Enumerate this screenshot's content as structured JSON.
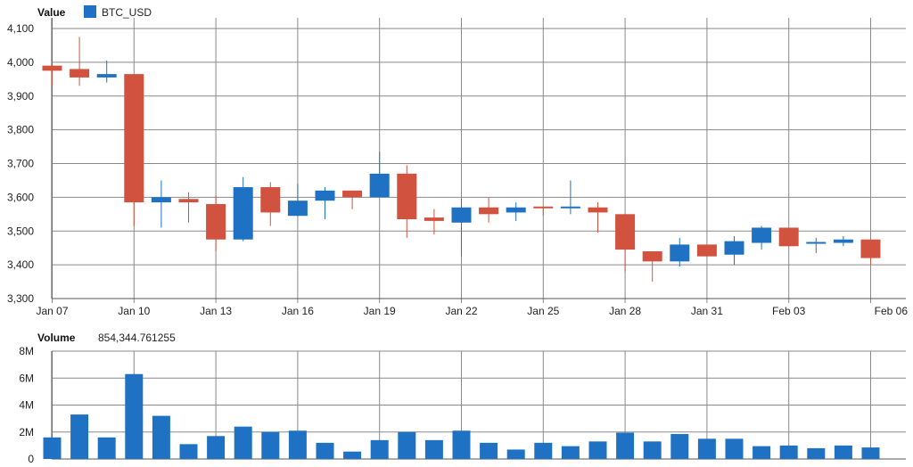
{
  "chart_data": [
    {
      "type": "candlestick",
      "panel_label": "Value",
      "series_name": "BTC_USD",
      "up_color": "#1f72c3",
      "down_color": "#d25240",
      "ylim": [
        3300,
        4100
      ],
      "y_ticks": [
        "3,300",
        "3,400",
        "3,500",
        "3,600",
        "3,700",
        "3,800",
        "3,900",
        "4,000",
        "4,100"
      ],
      "x_tick_labels": [
        "Jan 07",
        "Jan 10",
        "Jan 13",
        "Jan 16",
        "Jan 19",
        "Jan 22",
        "Jan 25",
        "Jan 28",
        "Jan 31",
        "Feb 03",
        "Feb 06"
      ],
      "dates": [
        "Jan 07",
        "Jan 08",
        "Jan 09",
        "Jan 10",
        "Jan 11",
        "Jan 12",
        "Jan 13",
        "Jan 14",
        "Jan 15",
        "Jan 16",
        "Jan 17",
        "Jan 18",
        "Jan 19",
        "Jan 20",
        "Jan 21",
        "Jan 22",
        "Jan 23",
        "Jan 24",
        "Jan 25",
        "Jan 26",
        "Jan 27",
        "Jan 28",
        "Jan 29",
        "Jan 30",
        "Jan 31",
        "Feb 01",
        "Feb 02",
        "Feb 03",
        "Feb 04",
        "Feb 05",
        "Feb 06"
      ],
      "ohlc": [
        [
          3990,
          3995,
          3930,
          3975
        ],
        [
          3980,
          4075,
          3930,
          3955
        ],
        [
          3955,
          4005,
          3940,
          3965
        ],
        [
          3965,
          3965,
          3515,
          3585
        ],
        [
          3585,
          3650,
          3510,
          3600
        ],
        [
          3595,
          3615,
          3525,
          3585
        ],
        [
          3580,
          3605,
          3440,
          3475
        ],
        [
          3475,
          3660,
          3470,
          3630
        ],
        [
          3630,
          3645,
          3515,
          3555
        ],
        [
          3545,
          3640,
          3545,
          3590
        ],
        [
          3590,
          3630,
          3535,
          3620
        ],
        [
          3620,
          3620,
          3565,
          3600
        ],
        [
          3600,
          3735,
          3600,
          3670
        ],
        [
          3670,
          3695,
          3480,
          3535
        ],
        [
          3540,
          3565,
          3490,
          3530
        ],
        [
          3525,
          3595,
          3425,
          3570
        ],
        [
          3570,
          3600,
          3525,
          3550
        ],
        [
          3555,
          3585,
          3530,
          3570
        ],
        [
          3570,
          3570,
          3545,
          3565
        ],
        [
          3570,
          3650,
          3550,
          3570
        ],
        [
          3570,
          3585,
          3495,
          3555
        ],
        [
          3550,
          3550,
          3380,
          3445
        ],
        [
          3440,
          3440,
          3350,
          3410
        ],
        [
          3410,
          3480,
          3395,
          3460
        ],
        [
          3460,
          3460,
          3425,
          3425
        ],
        [
          3430,
          3485,
          3400,
          3470
        ],
        [
          3465,
          3515,
          3445,
          3510
        ],
        [
          3510,
          3510,
          3455,
          3455
        ],
        [
          3460,
          3480,
          3435,
          3465
        ],
        [
          3465,
          3485,
          3455,
          3475
        ],
        [
          3475,
          3475,
          3400,
          3420
        ]
      ]
    },
    {
      "type": "bar",
      "panel_label": "Volume",
      "readout": "854,344.761255",
      "bar_color": "#1f72c3",
      "ylim": [
        0,
        8000000
      ],
      "y_ticks": [
        "0",
        "2M",
        "4M",
        "6M",
        "8M"
      ],
      "values": [
        1600000,
        3300000,
        1600000,
        6300000,
        3200000,
        1100000,
        1700000,
        2400000,
        2000000,
        2100000,
        1200000,
        550000,
        1400000,
        2000000,
        1400000,
        2100000,
        1200000,
        700000,
        1200000,
        950000,
        1300000,
        1950000,
        1300000,
        1850000,
        1500000,
        1500000,
        950000,
        1000000,
        800000,
        1000000,
        854344.761255
      ]
    }
  ]
}
